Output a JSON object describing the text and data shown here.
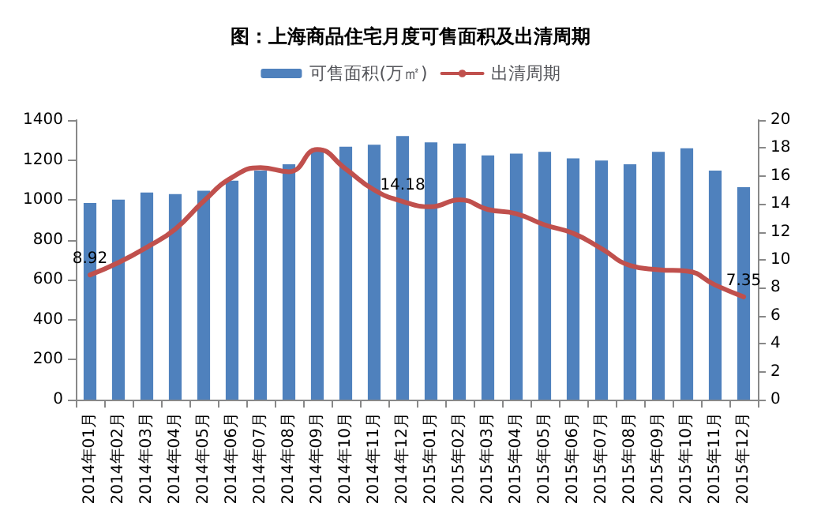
{
  "chart_data": {
    "type": "bar",
    "title": "图：上海商品住宅月度可售面积及出清周期",
    "categories": [
      "2014年01月",
      "2014年02月",
      "2014年03月",
      "2014年04月",
      "2014年05月",
      "2014年06月",
      "2014年07月",
      "2014年08月",
      "2014年09月",
      "2014年10月",
      "2014年11月",
      "2014年12月",
      "2015年01月",
      "2015年02月",
      "2015年03月",
      "2015年04月",
      "2015年05月",
      "2015年06月",
      "2015年07月",
      "2015年08月",
      "2015年09月",
      "2015年10月",
      "2015年11月",
      "2015年12月"
    ],
    "series": [
      {
        "name": "可售面积(万㎡)",
        "color": "#4f81bd",
        "values": [
          985,
          1002,
          1037,
          1029,
          1046,
          1096,
          1147,
          1179,
          1259,
          1267,
          1276,
          1320,
          1288,
          1282,
          1223,
          1232,
          1241,
          1208,
          1197,
          1179,
          1241,
          1259,
          1147,
          1064
        ]
      },
      {
        "name": "出清周期",
        "type": "line",
        "axis": "y2",
        "color": "#c0504d",
        "values": [
          8.92,
          9.8,
          10.9,
          12.2,
          14.2,
          15.9,
          16.6,
          16.3,
          17.9,
          16.5,
          15.0,
          14.18,
          13.8,
          14.3,
          13.6,
          13.3,
          12.5,
          11.9,
          10.8,
          9.6,
          9.3,
          9.2,
          8.2,
          7.35
        ],
        "value_labels": [
          "8.92",
          null,
          null,
          null,
          null,
          null,
          null,
          null,
          null,
          null,
          null,
          "14.18",
          null,
          null,
          null,
          null,
          null,
          null,
          null,
          null,
          null,
          null,
          null,
          "7.35"
        ]
      }
    ],
    "ylim": [
      0,
      1400
    ],
    "yticks": [
      0,
      200,
      400,
      600,
      800,
      1000,
      1200,
      1400
    ],
    "y2lim": [
      0,
      20
    ],
    "y2ticks": [
      0,
      2,
      4,
      6,
      8,
      10,
      12,
      14,
      16,
      18,
      20
    ],
    "legend": "top",
    "grid": false,
    "marker": "none"
  }
}
